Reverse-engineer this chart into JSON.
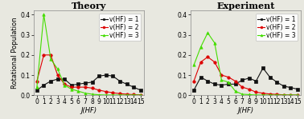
{
  "theory": {
    "title": "Theory",
    "xlabel": "J(HF)",
    "ylabel": "Rotational Population",
    "xlim": [
      -0.5,
      15.5
    ],
    "ylim": [
      0.0,
      0.42
    ],
    "yticks": [
      0.0,
      0.1,
      0.2,
      0.3,
      0.4
    ],
    "ytick_labels": [
      "0.0",
      "0.1",
      "0.2",
      "0.3",
      "0.4"
    ],
    "xticks": [
      0,
      1,
      2,
      3,
      4,
      5,
      6,
      7,
      8,
      9,
      10,
      11,
      12,
      13,
      14,
      15
    ],
    "v1": {
      "x": [
        0,
        1,
        2,
        3,
        4,
        5,
        6,
        7,
        8,
        9,
        10,
        11,
        12,
        13,
        14,
        15
      ],
      "y": [
        0.025,
        0.05,
        0.07,
        0.08,
        0.08,
        0.05,
        0.055,
        0.06,
        0.065,
        0.095,
        0.1,
        0.095,
        0.07,
        0.055,
        0.04,
        0.025
      ],
      "color": "#111111",
      "marker": "s",
      "label": "v(HF) = 1"
    },
    "v2": {
      "x": [
        0,
        1,
        2,
        3,
        4,
        5,
        6,
        7,
        8,
        9,
        10,
        11,
        12,
        13,
        14,
        15
      ],
      "y": [
        0.07,
        0.2,
        0.2,
        0.1,
        0.055,
        0.04,
        0.04,
        0.04,
        0.035,
        0.025,
        0.018,
        0.012,
        0.008,
        0.005,
        0.003,
        0.002
      ],
      "color": "#dd0000",
      "marker": "o",
      "label": "v(HF) = 2"
    },
    "v3": {
      "x": [
        0,
        1,
        2,
        3,
        4,
        5,
        6,
        7,
        8,
        9,
        10,
        11,
        12,
        13,
        14,
        15
      ],
      "y": [
        0.04,
        0.4,
        0.18,
        0.13,
        0.05,
        0.03,
        0.02,
        0.01,
        0.005,
        0.002,
        0.001,
        0.001,
        0.001,
        0.001,
        0.001,
        0.001
      ],
      "color": "#44dd00",
      "marker": "^",
      "label": "v(HF) = 3"
    }
  },
  "experiment": {
    "title": "Experiment",
    "xlabel": "J(HF)",
    "ylabel": "Rotational Population",
    "xlim": [
      -0.5,
      15.5
    ],
    "ylim": [
      0.0,
      0.42
    ],
    "yticks": [
      0.0,
      0.1,
      0.2,
      0.3,
      0.4
    ],
    "ytick_labels": [
      "0.0",
      "0.1",
      "0.2",
      "0.3",
      "0.4"
    ],
    "xticks": [
      0,
      1,
      2,
      3,
      4,
      5,
      6,
      7,
      8,
      9,
      10,
      11,
      12,
      13,
      14,
      15
    ],
    "v1": {
      "x": [
        0,
        1,
        2,
        3,
        4,
        5,
        6,
        7,
        8,
        9,
        10,
        11,
        12,
        13,
        14,
        15
      ],
      "y": [
        0.025,
        0.09,
        0.07,
        0.055,
        0.05,
        0.055,
        0.055,
        0.075,
        0.085,
        0.07,
        0.135,
        0.09,
        0.065,
        0.045,
        0.038,
        0.03
      ],
      "color": "#111111",
      "marker": "s",
      "label": "v(HF) = 1"
    },
    "v2": {
      "x": [
        0,
        1,
        2,
        3,
        4,
        5,
        6,
        7,
        8,
        9,
        10,
        11,
        12,
        13,
        14,
        15
      ],
      "y": [
        0.07,
        0.165,
        0.19,
        0.165,
        0.1,
        0.09,
        0.07,
        0.04,
        0.03,
        0.015,
        0.01,
        0.006,
        0.004,
        0.002,
        0.001,
        0.001
      ],
      "color": "#dd0000",
      "marker": "o",
      "label": "v(HF) = 2"
    },
    "v3": {
      "x": [
        0,
        1,
        2,
        3,
        4,
        5,
        6,
        7,
        8,
        9,
        10,
        11,
        12,
        13,
        14,
        15
      ],
      "y": [
        0.15,
        0.24,
        0.31,
        0.26,
        0.075,
        0.065,
        0.02,
        0.005,
        0.003,
        0.001,
        0.001,
        0.001,
        0.001,
        0.001,
        0.001,
        0.001
      ],
      "color": "#44dd00",
      "marker": "^",
      "label": "v(HF) = 3"
    }
  },
  "bg_color": "#e8e8e0",
  "plot_bg": "#e8e8e0",
  "title_fontsize": 8,
  "label_fontsize": 6,
  "tick_fontsize": 5.5,
  "legend_fontsize": 5.5,
  "linewidth": 0.8,
  "markersize": 2.5
}
